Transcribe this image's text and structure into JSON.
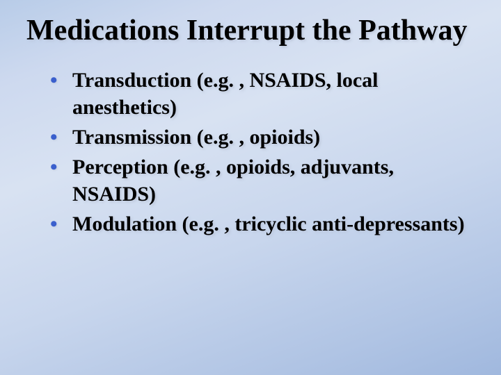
{
  "slide": {
    "title": "Medications Interrupt the Pathway",
    "title_color": "#000000",
    "title_fontsize": 42,
    "bullet_color": "#3a5fcd",
    "body_fontsize": 30,
    "background_gradient_start": "#b8cce8",
    "background_gradient_end": "#a0b8de",
    "bullets": [
      "Transduction (e.g. , NSAIDS, local anesthetics)",
      "Transmission (e.g. , opioids)",
      "Perception (e.g. , opioids, adjuvants, NSAIDS)",
      "Modulation (e.g. , tricyclic anti-depressants)"
    ]
  }
}
